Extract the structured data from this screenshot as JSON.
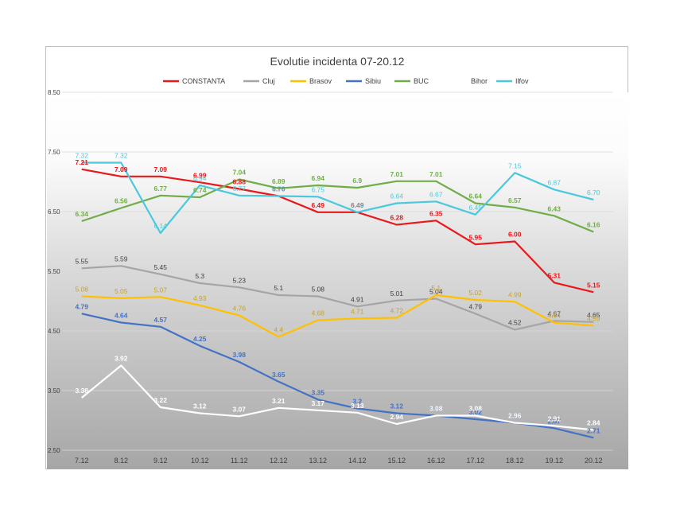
{
  "chart_data": {
    "type": "line",
    "title": "Evolutie incidenta 07-20.12",
    "xlabel": "",
    "ylabel": "",
    "categories": [
      "7.12",
      "8.12",
      "9.12",
      "10.12",
      "11.12",
      "12.12",
      "13.12",
      "14.12",
      "15.12",
      "16.12",
      "17.12",
      "18.12",
      "19.12",
      "20.12"
    ],
    "ylim": [
      2.5,
      8.5
    ],
    "yticks": [
      2.5,
      3.5,
      4.5,
      5.5,
      6.5,
      7.5,
      8.5
    ],
    "ytick_labels": [
      "2.50",
      "3.50",
      "4.50",
      "5.50",
      "6.50",
      "7.50",
      "8.50"
    ],
    "grid": true,
    "background": "gradient white (top) to gray (bottom)",
    "legend_position": "top",
    "series": [
      {
        "name": "CONSTANTA",
        "color": "#e8181b",
        "bold_labels": true,
        "values": [
          7.21,
          7.09,
          7.09,
          6.99,
          6.88,
          6.76,
          6.49,
          6.49,
          6.28,
          6.35,
          5.95,
          6.0,
          5.31,
          5.15
        ],
        "labels": [
          "7.21",
          "7.09",
          "7.09",
          "6.99",
          "6.88",
          "6.76",
          "6.49",
          "6.49",
          "6.28",
          "6.35",
          "5.95",
          "6.00",
          "5.31",
          "5.15"
        ]
      },
      {
        "name": "Cluj",
        "color": "#a5a5a5",
        "label_color": "#404040",
        "bold_labels": false,
        "values": [
          5.55,
          5.59,
          5.45,
          5.3,
          5.23,
          5.1,
          5.08,
          4.91,
          5.01,
          5.04,
          4.79,
          4.52,
          4.67,
          4.65
        ],
        "labels": [
          "5.55",
          "5.59",
          "5.45",
          "5.3",
          "5.23",
          "5.1",
          "5.08",
          "4.91",
          "5.01",
          "5.04",
          "4.79",
          "4.52",
          "4.67",
          "4.65"
        ]
      },
      {
        "name": "Brasov",
        "color": "#ffc000",
        "label_color": "#c9a227",
        "bold_labels": false,
        "values": [
          5.08,
          5.05,
          5.07,
          4.93,
          4.76,
          4.4,
          4.68,
          4.71,
          4.72,
          5.1,
          5.02,
          4.99,
          4.64,
          4.59
        ],
        "labels": [
          "5.08",
          "5.05",
          "5.07",
          "4.93",
          "4.76",
          "4.4",
          "4.68",
          "4.71",
          "4.72",
          "5.1",
          "5.02",
          "4.99",
          "4.64",
          "4.59"
        ]
      },
      {
        "name": "Sibiu",
        "color": "#4472c4",
        "bold_labels": true,
        "values": [
          4.79,
          4.64,
          4.57,
          4.25,
          3.98,
          3.65,
          3.35,
          3.2,
          3.12,
          3.08,
          3.02,
          2.96,
          2.87,
          2.71
        ],
        "labels": [
          "4.79",
          "4.64",
          "4.57",
          "4.25",
          "3.98",
          "3.65",
          "3.35",
          "3.2",
          "3.12",
          "3.08",
          "3.02",
          "2.96",
          "2.87",
          "2.71"
        ]
      },
      {
        "name": "BUC",
        "color": "#70ad47",
        "bold_labels": true,
        "values": [
          6.34,
          6.56,
          6.77,
          6.74,
          7.04,
          6.89,
          6.94,
          6.9,
          7.01,
          7.01,
          6.64,
          6.57,
          6.43,
          6.16
        ],
        "labels": [
          "6.34",
          "6.56",
          "6.77",
          "6.74",
          "7.04",
          "6.89",
          "6.94",
          "6.9",
          "7.01",
          "7.01",
          "6.64",
          "6.57",
          "6.43",
          "6.16"
        ]
      },
      {
        "name": "Bihor",
        "color": "#ffffff",
        "legend_swatch": "none",
        "bold_labels": true,
        "values": [
          3.38,
          3.92,
          3.22,
          3.12,
          3.07,
          3.21,
          3.17,
          3.13,
          2.94,
          3.08,
          3.08,
          2.96,
          2.91,
          2.84
        ],
        "labels": [
          "3.38",
          "3.92",
          "3.22",
          "3.12",
          "3.07",
          "3.21",
          "3.17",
          "3.13",
          "2.94",
          "3.08",
          "3.08",
          "2.96",
          "2.91",
          "2.84"
        ]
      },
      {
        "name": "Ilfov",
        "color": "#4bc8dc",
        "bold_labels": false,
        "values": [
          7.32,
          7.32,
          6.14,
          6.94,
          6.77,
          6.76,
          6.75,
          6.49,
          6.64,
          6.67,
          6.45,
          7.15,
          6.87,
          6.7
        ],
        "labels": [
          "7.32",
          "7.32",
          "6.14",
          "6.94",
          "6.77",
          "6.76",
          "6.75",
          "6.49",
          "6.64",
          "6.67",
          "6.45",
          "7.15",
          "6.87",
          "6.70"
        ]
      }
    ]
  }
}
